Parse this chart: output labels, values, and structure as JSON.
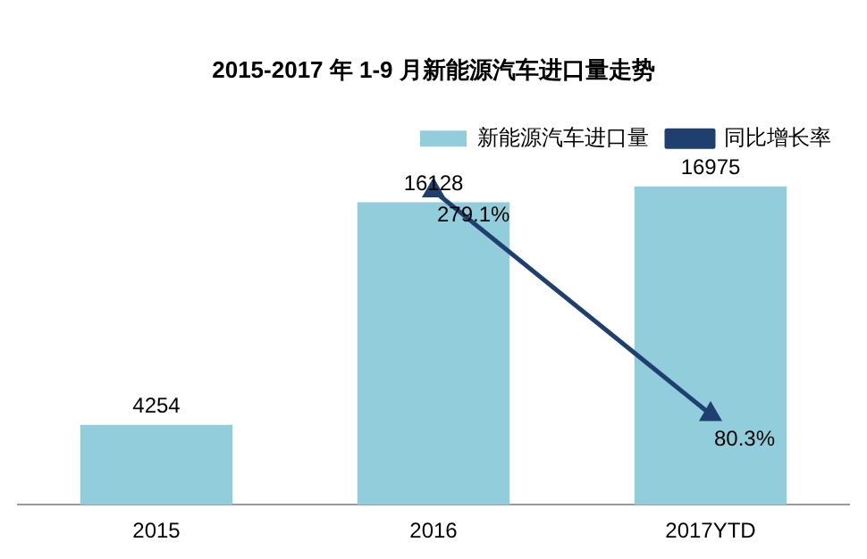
{
  "chart_data": {
    "type": "bar",
    "title": "2015-2017 年 1-9 月新能源汽车进口量走势",
    "categories": [
      "2015",
      "2016",
      "2017YTD"
    ],
    "series": [
      {
        "name": "新能源汽车进口量",
        "color": "#92cddc",
        "values": [
          4254,
          16128,
          16975
        ],
        "data_labels": true
      },
      {
        "name": "同比增长率",
        "type": "line",
        "axis": "y2",
        "color": "#1f3f6e",
        "values": [
          null,
          279.1,
          80.3
        ],
        "value_labels": [
          null,
          "279.1%",
          "80.3%"
        ],
        "marker": "triangle"
      }
    ],
    "legend": "top right"
  }
}
